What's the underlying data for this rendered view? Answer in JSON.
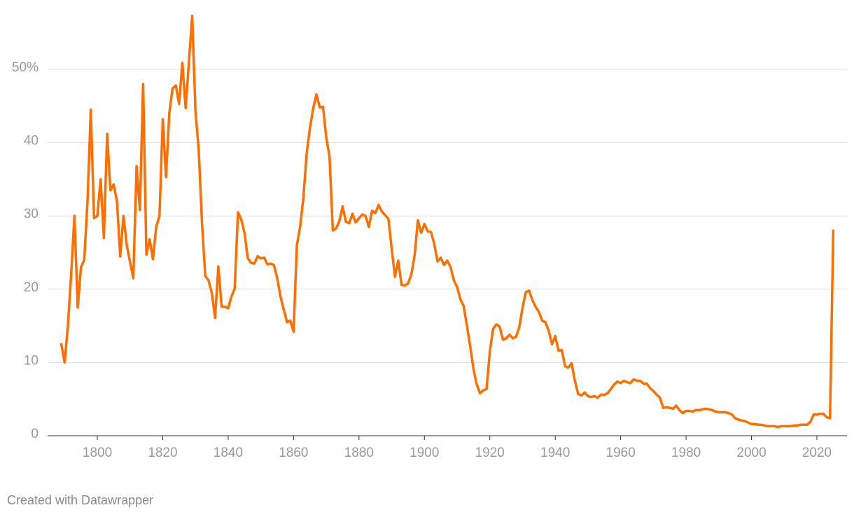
{
  "chart_data": {
    "type": "line",
    "x": [
      1789,
      1790,
      1791,
      1792,
      1793,
      1794,
      1795,
      1796,
      1797,
      1798,
      1799,
      1800,
      1801,
      1802,
      1803,
      1804,
      1805,
      1806,
      1807,
      1808,
      1809,
      1810,
      1811,
      1812,
      1813,
      1814,
      1815,
      1816,
      1817,
      1818,
      1819,
      1820,
      1821,
      1822,
      1823,
      1824,
      1825,
      1826,
      1827,
      1828,
      1829,
      1830,
      1831,
      1832,
      1833,
      1834,
      1835,
      1836,
      1837,
      1838,
      1839,
      1840,
      1841,
      1842,
      1843,
      1844,
      1845,
      1846,
      1847,
      1848,
      1849,
      1850,
      1851,
      1852,
      1853,
      1854,
      1855,
      1856,
      1857,
      1858,
      1859,
      1860,
      1861,
      1862,
      1863,
      1864,
      1865,
      1866,
      1867,
      1868,
      1869,
      1870,
      1871,
      1872,
      1873,
      1874,
      1875,
      1876,
      1877,
      1878,
      1879,
      1880,
      1881,
      1882,
      1883,
      1884,
      1885,
      1886,
      1887,
      1888,
      1889,
      1890,
      1891,
      1892,
      1893,
      1894,
      1895,
      1896,
      1897,
      1898,
      1899,
      1900,
      1901,
      1902,
      1903,
      1904,
      1905,
      1906,
      1907,
      1908,
      1909,
      1910,
      1911,
      1912,
      1913,
      1914,
      1915,
      1916,
      1917,
      1918,
      1919,
      1920,
      1921,
      1922,
      1923,
      1924,
      1925,
      1926,
      1927,
      1928,
      1929,
      1930,
      1931,
      1932,
      1933,
      1934,
      1935,
      1936,
      1937,
      1938,
      1939,
      1940,
      1941,
      1942,
      1943,
      1944,
      1945,
      1946,
      1947,
      1948,
      1949,
      1950,
      1951,
      1952,
      1953,
      1954,
      1955,
      1956,
      1957,
      1958,
      1959,
      1960,
      1961,
      1962,
      1963,
      1964,
      1965,
      1966,
      1967,
      1968,
      1969,
      1970,
      1971,
      1972,
      1973,
      1974,
      1975,
      1976,
      1977,
      1978,
      1979,
      1980,
      1981,
      1982,
      1983,
      1984,
      1985,
      1986,
      1987,
      1988,
      1989,
      1990,
      1991,
      1992,
      1993,
      1994,
      1995,
      1996,
      1997,
      1998,
      1999,
      2000,
      2001,
      2002,
      2003,
      2004,
      2005,
      2006,
      2007,
      2008,
      2009,
      2010,
      2011,
      2012,
      2013,
      2014,
      2015,
      2016,
      2017,
      2018,
      2019,
      2020,
      2021,
      2022,
      2023,
      2024,
      2025
    ],
    "values": [
      12.5,
      10.0,
      15.0,
      22,
      30,
      17.5,
      23,
      24,
      32,
      44.5,
      29.7,
      30,
      35,
      27,
      41.2,
      33.5,
      34.3,
      32,
      24.5,
      30,
      26,
      23.7,
      21.5,
      36.8,
      30.8,
      48,
      24.7,
      26.8,
      24.1,
      28.5,
      30,
      43.2,
      35.3,
      44,
      47.4,
      47.8,
      45.3,
      50.9,
      44.7,
      51,
      57.3,
      44.3,
      39,
      29,
      21.8,
      21.2,
      19.5,
      16.1,
      23.1,
      17.6,
      17.6,
      17.4,
      19,
      20.1,
      30.5,
      29.5,
      27.7,
      24.2,
      23.6,
      23.5,
      24.5,
      24.2,
      24.3,
      23.4,
      23.5,
      23.3,
      21.5,
      19,
      17.2,
      15.5,
      15.7,
      14.2,
      26,
      28.5,
      32.5,
      38.5,
      42,
      44.7,
      46.6,
      44.8,
      44.9,
      40.7,
      38,
      28,
      28.3,
      29.3,
      31.3,
      29.2,
      29,
      30.3,
      29.1,
      29.7,
      30.2,
      30,
      28.5,
      30.7,
      30.4,
      31.5,
      30.6,
      30.1,
      29.6,
      25.5,
      21.7,
      23.9,
      20.6,
      20.5,
      20.8,
      22,
      24.6,
      29.4,
      27.7,
      28.9,
      27.9,
      27.8,
      26.2,
      23.8,
      24.3,
      23.3,
      23.9,
      23,
      21.2,
      20.3,
      18.6,
      17.7,
      15,
      12.2,
      9.1,
      7,
      5.8,
      6.2,
      6.4,
      11.5,
      14.6,
      15.2,
      14.9,
      13.1,
      13.3,
      13.8,
      13.3,
      13.5,
      14.8,
      17.5,
      19.6,
      19.8,
      18.5,
      17.6,
      16.9,
      15.7,
      15.5,
      14.3,
      12.5,
      13.6,
      11.6,
      11.7,
      9.5,
      9.3,
      9.9,
      7.5,
      5.7,
      5.5,
      5.9,
      5.4,
      5.3,
      5.4,
      5.2,
      5.6,
      5.6,
      5.8,
      6.4,
      7,
      7.4,
      7.2,
      7.5,
      7.3,
      7.2,
      7.7,
      7.5,
      7.5,
      7.1,
      7.1,
      6.5,
      6.1,
      5.6,
      5.2,
      3.8,
      3.9,
      3.8,
      3.7,
      4.1,
      3.5,
      3.1,
      3.4,
      3.4,
      3.3,
      3.5,
      3.5,
      3.6,
      3.7,
      3.6,
      3.5,
      3.3,
      3.2,
      3.2,
      3.2,
      3.1,
      2.9,
      2.4,
      2.2,
      2.1,
      2,
      1.8,
      1.6,
      1.6,
      1.5,
      1.5,
      1.4,
      1.3,
      1.3,
      1.3,
      1.2,
      1.3,
      1.3,
      1.3,
      1.3,
      1.4,
      1.4,
      1.5,
      1.5,
      1.5,
      1.9,
      2.9,
      2.9,
      3,
      3,
      2.5,
      2.4,
      28
    ],
    "color": "#ff6f00",
    "xlim": [
      1784.8,
      2029.2
    ],
    "xticks": [
      1800,
      1820,
      1840,
      1860,
      1880,
      1900,
      1920,
      1940,
      1960,
      1980,
      2000,
      2020
    ],
    "ylim": [
      0,
      57.6
    ],
    "yticks": [
      0,
      10,
      20,
      30,
      40,
      {
        "value": 50,
        "label": "50%"
      }
    ],
    "grid": true,
    "credit": "Created with Datawrapper"
  }
}
